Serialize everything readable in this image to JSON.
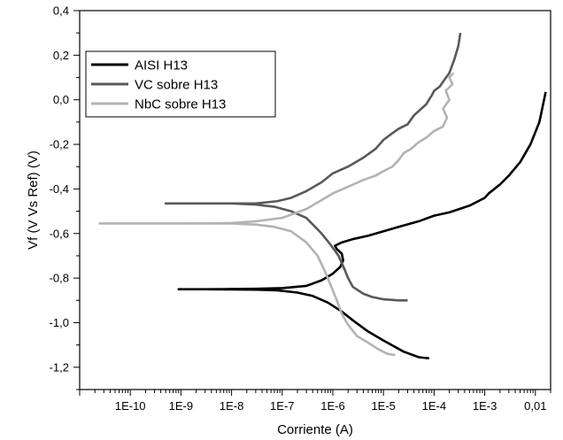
{
  "chart_data": {
    "type": "line",
    "title": "",
    "xlabel": "Corriente (A)",
    "ylabel": "Vf (V Vs Ref) (V)",
    "x_scale": "log",
    "xlim": [
      1e-11,
      0.02
    ],
    "ylim": [
      -1.3,
      0.4
    ],
    "grid": false,
    "legend_position": "top-left",
    "x_ticks": [
      {
        "value": 1e-10,
        "label": "1E-10"
      },
      {
        "value": 1e-09,
        "label": "1E-9"
      },
      {
        "value": 1e-08,
        "label": "1E-8"
      },
      {
        "value": 1e-07,
        "label": "1E-7"
      },
      {
        "value": 1e-06,
        "label": "1E-6"
      },
      {
        "value": 1e-05,
        "label": "1E-5"
      },
      {
        "value": 0.0001,
        "label": "1E-4"
      },
      {
        "value": 0.001,
        "label": "1E-3"
      },
      {
        "value": 0.01,
        "label": "0,01"
      }
    ],
    "y_ticks": [
      {
        "value": 0.4,
        "label": "0,4"
      },
      {
        "value": 0.2,
        "label": "0,2"
      },
      {
        "value": 0.0,
        "label": "0,0"
      },
      {
        "value": -0.2,
        "label": "-0,2"
      },
      {
        "value": -0.4,
        "label": "-0,4"
      },
      {
        "value": -0.6,
        "label": "-0,6"
      },
      {
        "value": -0.8,
        "label": "-0,8"
      },
      {
        "value": -1.0,
        "label": "-1,0"
      },
      {
        "value": -1.2,
        "label": "-1,2"
      }
    ],
    "series": [
      {
        "name": "AISI H13",
        "color": "#000000",
        "points": [
          [
            8e-05,
            -1.16
          ],
          [
            5e-05,
            -1.155
          ],
          [
            2.5e-05,
            -1.13
          ],
          [
            1e-05,
            -1.08
          ],
          [
            5e-06,
            -1.04
          ],
          [
            2.5e-06,
            -0.99
          ],
          [
            1.5e-06,
            -0.95
          ],
          [
            8e-07,
            -0.91
          ],
          [
            4e-07,
            -0.88
          ],
          [
            2e-07,
            -0.865
          ],
          [
            8e-08,
            -0.855
          ],
          [
            3e-08,
            -0.852
          ],
          [
            1e-08,
            -0.851
          ],
          [
            3e-09,
            -0.85
          ],
          [
            9e-10,
            -0.85
          ],
          [
            3e-09,
            -0.85
          ],
          [
            1e-08,
            -0.849
          ],
          [
            3e-08,
            -0.848
          ],
          [
            1e-07,
            -0.845
          ],
          [
            3e-07,
            -0.835
          ],
          [
            6e-07,
            -0.81
          ],
          [
            1e-06,
            -0.78
          ],
          [
            1.4e-06,
            -0.75
          ],
          [
            1.6e-06,
            -0.72
          ],
          [
            1.5e-06,
            -0.69
          ],
          [
            1.2e-06,
            -0.67
          ],
          [
            1.1e-06,
            -0.655
          ],
          [
            1.5e-06,
            -0.64
          ],
          [
            2.5e-06,
            -0.625
          ],
          [
            5e-06,
            -0.61
          ],
          [
            1e-05,
            -0.59
          ],
          [
            2e-05,
            -0.57
          ],
          [
            5e-05,
            -0.545
          ],
          [
            0.0001,
            -0.52
          ],
          [
            0.0002,
            -0.505
          ],
          [
            0.0005,
            -0.475
          ],
          [
            0.001,
            -0.44
          ],
          [
            0.0012,
            -0.42
          ],
          [
            0.002,
            -0.38
          ],
          [
            0.003,
            -0.34
          ],
          [
            0.005,
            -0.28
          ],
          [
            0.008,
            -0.2
          ],
          [
            0.012,
            -0.1
          ],
          [
            0.016,
            0.035
          ]
        ]
      },
      {
        "name": "VC sobre H13",
        "color": "#595959",
        "points": [
          [
            3e-05,
            -0.9
          ],
          [
            2e-05,
            -0.9
          ],
          [
            1e-05,
            -0.895
          ],
          [
            6e-06,
            -0.885
          ],
          [
            4e-06,
            -0.87
          ],
          [
            2.5e-06,
            -0.84
          ],
          [
            2e-06,
            -0.8
          ],
          [
            1.7e-06,
            -0.76
          ],
          [
            1.3e-06,
            -0.7
          ],
          [
            9e-07,
            -0.65
          ],
          [
            6e-07,
            -0.6
          ],
          [
            3e-07,
            -0.53
          ],
          [
            1.5e-07,
            -0.5
          ],
          [
            7e-08,
            -0.48
          ],
          [
            3e-08,
            -0.47
          ],
          [
            1e-08,
            -0.465
          ],
          [
            3e-09,
            -0.465
          ],
          [
            5e-10,
            -0.465
          ],
          [
            3e-09,
            -0.465
          ],
          [
            1e-08,
            -0.465
          ],
          [
            3e-08,
            -0.465
          ],
          [
            8e-08,
            -0.455
          ],
          [
            1.5e-07,
            -0.44
          ],
          [
            3e-07,
            -0.41
          ],
          [
            6e-07,
            -0.37
          ],
          [
            1e-06,
            -0.33
          ],
          [
            2e-06,
            -0.3
          ],
          [
            4e-06,
            -0.26
          ],
          [
            7e-06,
            -0.22
          ],
          [
            1e-05,
            -0.18
          ],
          [
            1.5e-05,
            -0.15
          ],
          [
            2e-05,
            -0.13
          ],
          [
            3e-05,
            -0.11
          ],
          [
            4e-05,
            -0.07
          ],
          [
            5e-05,
            -0.05
          ],
          [
            7e-05,
            -0.02
          ],
          [
            9e-05,
            0.02
          ],
          [
            0.0001,
            0.04
          ],
          [
            0.00013,
            0.06
          ],
          [
            0.00016,
            0.09
          ],
          [
            0.0002,
            0.12
          ],
          [
            0.00025,
            0.18
          ],
          [
            0.0003,
            0.24
          ],
          [
            0.00033,
            0.3
          ]
        ]
      },
      {
        "name": "NbC sobre H13",
        "color": "#b3b3b3",
        "points": [
          [
            1.7e-05,
            -1.145
          ],
          [
            1.2e-05,
            -1.14
          ],
          [
            8e-06,
            -1.12
          ],
          [
            5e-06,
            -1.09
          ],
          [
            3e-06,
            -1.06
          ],
          [
            2e-06,
            -1.01
          ],
          [
            1.5e-06,
            -0.96
          ],
          [
            1.2e-06,
            -0.9
          ],
          [
            9e-07,
            -0.83
          ],
          [
            7e-07,
            -0.77
          ],
          [
            5e-07,
            -0.7
          ],
          [
            3e-07,
            -0.64
          ],
          [
            1.5e-07,
            -0.59
          ],
          [
            7e-08,
            -0.57
          ],
          [
            3e-08,
            -0.56
          ],
          [
            1e-08,
            -0.555
          ],
          [
            1e-09,
            -0.555
          ],
          [
            2.5e-11,
            -0.555
          ],
          [
            1e-09,
            -0.555
          ],
          [
            1e-08,
            -0.553
          ],
          [
            3e-08,
            -0.545
          ],
          [
            1e-07,
            -0.53
          ],
          [
            3e-07,
            -0.49
          ],
          [
            6e-07,
            -0.45
          ],
          [
            1e-06,
            -0.42
          ],
          [
            2e-06,
            -0.39
          ],
          [
            4e-06,
            -0.36
          ],
          [
            7e-06,
            -0.34
          ],
          [
            1e-05,
            -0.32
          ],
          [
            1.5e-05,
            -0.3
          ],
          [
            2e-05,
            -0.27
          ],
          [
            2.5e-05,
            -0.24
          ],
          [
            3.5e-05,
            -0.22
          ],
          [
            5e-05,
            -0.19
          ],
          [
            7e-05,
            -0.17
          ],
          [
            0.0001,
            -0.14
          ],
          [
            0.00015,
            -0.12
          ],
          [
            0.00018,
            -0.08
          ],
          [
            0.00015,
            -0.04
          ],
          [
            0.0002,
            0.0
          ],
          [
            0.00017,
            0.04
          ],
          [
            0.00023,
            0.07
          ],
          [
            0.0002,
            0.1
          ],
          [
            0.00024,
            0.12
          ]
        ]
      }
    ]
  }
}
